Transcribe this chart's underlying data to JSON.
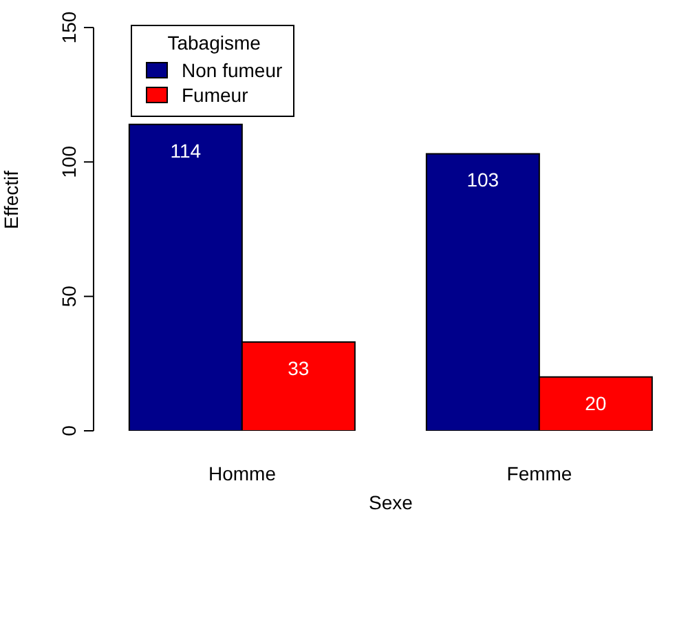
{
  "chart_data": {
    "type": "bar",
    "xlabel": "Sexe",
    "ylabel": "Effectif",
    "legend_title": "Tabagisme",
    "categories": [
      "Homme",
      "Femme"
    ],
    "series": [
      {
        "name": "Non fumeur",
        "color": "#00008b",
        "values": [
          114,
          103
        ]
      },
      {
        "name": "Fumeur",
        "color": "#ff0000",
        "values": [
          33,
          20
        ]
      }
    ],
    "ylim": [
      0,
      150
    ],
    "yticks": [
      0,
      50,
      100,
      150
    ],
    "data_labels": true,
    "legend": "top left",
    "grid": false
  }
}
